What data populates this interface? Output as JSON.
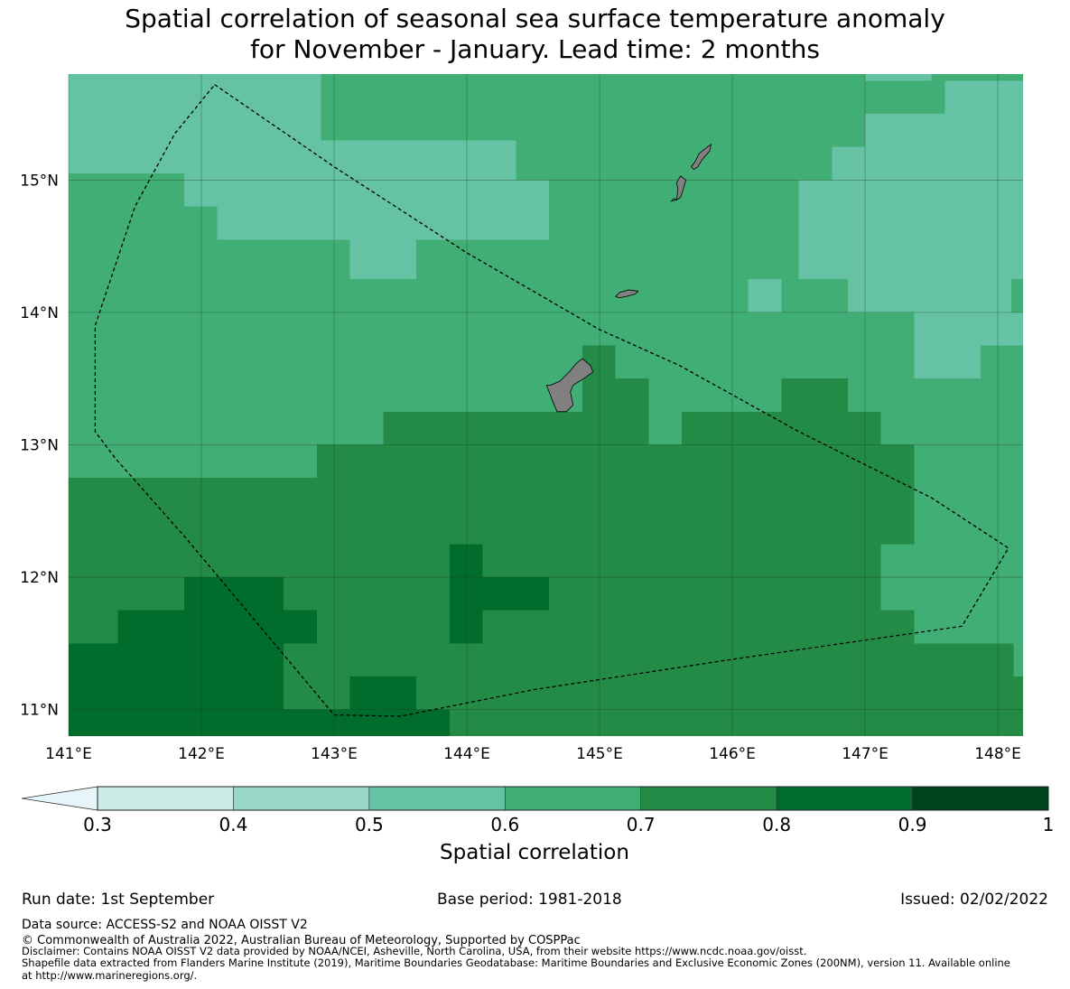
{
  "title": {
    "line1": "Spatial correlation of seasonal sea surface temperature anomaly",
    "line2": "for November - January. Lead time: 2 months"
  },
  "map": {
    "lon_range": [
      141.0,
      148.19
    ],
    "lat_range": [
      10.8,
      15.8
    ],
    "lon_ticks": [
      {
        "value": 141,
        "label": "141°E"
      },
      {
        "value": 142,
        "label": "142°E"
      },
      {
        "value": 143,
        "label": "143°E"
      },
      {
        "value": 144,
        "label": "144°E"
      },
      {
        "value": 145,
        "label": "145°E"
      },
      {
        "value": 146,
        "label": "146°E"
      },
      {
        "value": 147,
        "label": "147°E"
      },
      {
        "value": 148,
        "label": "148°E"
      }
    ],
    "lat_ticks": [
      {
        "value": 15,
        "label": "15°N"
      },
      {
        "value": 14,
        "label": "14°N"
      },
      {
        "value": 13,
        "label": "13°N"
      },
      {
        "value": 12,
        "label": "12°N"
      },
      {
        "value": 11,
        "label": "11°N"
      }
    ],
    "grid_res_deg": 0.25,
    "background_class": 4,
    "regions": [
      {
        "cls": 3,
        "lon": [
          141.0,
          142.9
        ],
        "lat": [
          15.05,
          15.8
        ]
      },
      {
        "cls": 3,
        "lon": [
          141.87,
          144.37
        ],
        "lat": [
          14.8,
          15.3
        ]
      },
      {
        "cls": 3,
        "lon": [
          142.12,
          144.62
        ],
        "lat": [
          14.55,
          15.0
        ]
      },
      {
        "cls": 3,
        "lon": [
          142.87,
          144.62
        ],
        "lat": [
          14.55,
          14.8
        ]
      },
      {
        "cls": 3,
        "lon": [
          143.12,
          143.62
        ],
        "lat": [
          14.25,
          14.55
        ]
      },
      {
        "cls": 3,
        "lon": [
          146.5,
          148.2
        ],
        "lat": [
          14.25,
          15.0
        ]
      },
      {
        "cls": 3,
        "lon": [
          146.75,
          148.2
        ],
        "lat": [
          15.0,
          15.25
        ]
      },
      {
        "cls": 3,
        "lon": [
          147.0,
          148.2
        ],
        "lat": [
          15.25,
          15.5
        ]
      },
      {
        "cls": 3,
        "lon": [
          147.6,
          148.2
        ],
        "lat": [
          15.5,
          15.75
        ]
      },
      {
        "cls": 3,
        "lon": [
          146.12,
          146.37
        ],
        "lat": [
          14.0,
          14.25
        ]
      },
      {
        "cls": 3,
        "lon": [
          146.87,
          148.1
        ],
        "lat": [
          14.0,
          14.25
        ]
      },
      {
        "cls": 3,
        "lon": [
          147.37,
          148.2
        ],
        "lat": [
          13.75,
          14.0
        ]
      },
      {
        "cls": 3,
        "lon": [
          147.37,
          147.87
        ],
        "lat": [
          13.5,
          13.75
        ]
      },
      {
        "cls": 3,
        "lon": [
          147.0,
          147.5
        ],
        "lat": [
          15.75,
          15.8
        ]
      },
      {
        "cls": 5,
        "lon": [
          141.0,
          142.87
        ],
        "lat": [
          11.5,
          12.75
        ]
      },
      {
        "cls": 5,
        "lon": [
          142.87,
          148.2
        ],
        "lat": [
          11.5,
          13.0
        ]
      },
      {
        "cls": 5,
        "lon": [
          143.37,
          145.37
        ],
        "lat": [
          13.0,
          13.25
        ]
      },
      {
        "cls": 5,
        "lon": [
          144.87,
          145.12
        ],
        "lat": [
          13.25,
          13.75
        ]
      },
      {
        "cls": 5,
        "lon": [
          145.12,
          145.37
        ],
        "lat": [
          13.25,
          13.5
        ]
      },
      {
        "cls": 5,
        "lon": [
          145.62,
          147.12
        ],
        "lat": [
          13.0,
          13.25
        ]
      },
      {
        "cls": 5,
        "lon": [
          146.37,
          146.87
        ],
        "lat": [
          13.25,
          13.5
        ]
      },
      {
        "cls": 5,
        "lon": [
          141.0,
          148.2
        ],
        "lat": [
          10.8,
          11.5
        ]
      },
      {
        "cls": 4,
        "lon": [
          147.37,
          148.2
        ],
        "lat": [
          12.25,
          13.0
        ]
      },
      {
        "cls": 4,
        "lon": [
          147.12,
          148.2
        ],
        "lat": [
          11.75,
          12.25
        ]
      },
      {
        "cls": 4,
        "lon": [
          147.37,
          148.2
        ],
        "lat": [
          11.5,
          11.75
        ]
      },
      {
        "cls": 4,
        "lon": [
          148.12,
          148.2
        ],
        "lat": [
          11.25,
          11.5
        ]
      },
      {
        "cls": 6,
        "lon": [
          141.0,
          141.37
        ],
        "lat": [
          10.8,
          11.5
        ]
      },
      {
        "cls": 6,
        "lon": [
          141.37,
          141.87
        ],
        "lat": [
          10.8,
          11.75
        ]
      },
      {
        "cls": 6,
        "lon": [
          141.87,
          142.62
        ],
        "lat": [
          11.0,
          12.0
        ]
      },
      {
        "cls": 6,
        "lon": [
          142.62,
          142.87
        ],
        "lat": [
          11.5,
          11.75
        ]
      },
      {
        "cls": 6,
        "lon": [
          141.87,
          143.87
        ],
        "lat": [
          10.8,
          11.0
        ]
      },
      {
        "cls": 6,
        "lon": [
          143.12,
          143.62
        ],
        "lat": [
          11.0,
          11.25
        ]
      },
      {
        "cls": 6,
        "lon": [
          143.87,
          144.12
        ],
        "lat": [
          11.5,
          12.25
        ]
      },
      {
        "cls": 6,
        "lon": [
          144.12,
          144.62
        ],
        "lat": [
          11.75,
          12.0
        ]
      }
    ],
    "islands": [
      {
        "name": "Guam",
        "coords": [
          [
            144.63,
            13.45
          ],
          [
            144.7,
            13.48
          ],
          [
            144.77,
            13.55
          ],
          [
            144.83,
            13.62
          ],
          [
            144.87,
            13.65
          ],
          [
            144.93,
            13.6
          ],
          [
            144.95,
            13.55
          ],
          [
            144.88,
            13.5
          ],
          [
            144.8,
            13.45
          ],
          [
            144.78,
            13.4
          ],
          [
            144.8,
            13.3
          ],
          [
            144.75,
            13.25
          ],
          [
            144.68,
            13.25
          ],
          [
            144.65,
            13.32
          ],
          [
            144.62,
            13.4
          ],
          [
            144.6,
            13.45
          ]
        ]
      },
      {
        "name": "Rota",
        "coords": [
          [
            145.12,
            14.12
          ],
          [
            145.15,
            14.15
          ],
          [
            145.22,
            14.17
          ],
          [
            145.29,
            14.16
          ],
          [
            145.27,
            14.14
          ],
          [
            145.2,
            14.12
          ],
          [
            145.15,
            14.11
          ]
        ]
      },
      {
        "name": "Tinian",
        "coords": [
          [
            145.58,
            14.85
          ],
          [
            145.61,
            14.87
          ],
          [
            145.63,
            14.93
          ],
          [
            145.65,
            15.0
          ],
          [
            145.61,
            15.03
          ],
          [
            145.58,
            14.98
          ],
          [
            145.59,
            14.93
          ]
        ]
      },
      {
        "name": "Aguijan",
        "coords": [
          [
            145.54,
            14.84
          ],
          [
            145.58,
            14.85
          ],
          [
            145.56,
            14.86
          ]
        ]
      },
      {
        "name": "Saipan",
        "coords": [
          [
            145.71,
            15.08
          ],
          [
            145.74,
            15.1
          ],
          [
            145.77,
            15.15
          ],
          [
            145.83,
            15.22
          ],
          [
            145.84,
            15.27
          ],
          [
            145.8,
            15.24
          ],
          [
            145.75,
            15.2
          ],
          [
            145.72,
            15.14
          ],
          [
            145.69,
            15.1
          ]
        ]
      }
    ],
    "eez_boundary": [
      [
        142.1,
        15.72
      ],
      [
        143.0,
        15.1
      ],
      [
        144.0,
        14.45
      ],
      [
        145.0,
        13.87
      ],
      [
        145.6,
        13.6
      ],
      [
        146.5,
        13.1
      ],
      [
        147.5,
        12.6
      ],
      [
        148.08,
        12.22
      ],
      [
        147.73,
        11.63
      ],
      [
        146.0,
        11.38
      ],
      [
        144.5,
        11.15
      ],
      [
        143.5,
        10.95
      ],
      [
        143.0,
        10.96
      ],
      [
        141.88,
        12.3
      ],
      [
        141.35,
        12.9
      ],
      [
        141.2,
        13.1
      ],
      [
        141.2,
        13.9
      ],
      [
        141.5,
        14.8
      ],
      [
        141.8,
        15.35
      ],
      [
        142.1,
        15.72
      ]
    ]
  },
  "colorbar": {
    "title": "Spatial correlation",
    "colors": [
      "#e5f5f9",
      "#ccece6",
      "#99d8c9",
      "#66c2a4",
      "#41ae76",
      "#238b45",
      "#006d2c",
      "#00441b"
    ],
    "tick_labels": [
      "0.3",
      "0.4",
      "0.5",
      "0.6",
      "0.7",
      "0.8",
      "0.9",
      "1"
    ]
  },
  "footer": {
    "run_date": "Run date: 1st September",
    "base_period": "Base period: 1981-2018",
    "issued": "Issued: 02/02/2022",
    "data_source": "Data source: ACCESS-S2 and NOAA OISST V2",
    "copyright": "© Commonwealth of Australia 2022, Australian Bureau of Meteorology, Supported by COSPPac",
    "disclaimer": "Disclaimer: Contains NOAA OISST V2 data provided by NOAA/NCEI, Asheville, North Carolina, USA, from their website https://www.ncdc.noaa.gov/oisst.",
    "shapefile_line1": "Shapefile data extracted from Flanders Marine Institute (2019), Maritime Boundaries Geodatabase: Maritime Boundaries and Exclusive Economic Zones (200NM), version 11. Available online",
    "shapefile_line2": "at http://www.marineregions.org/."
  }
}
